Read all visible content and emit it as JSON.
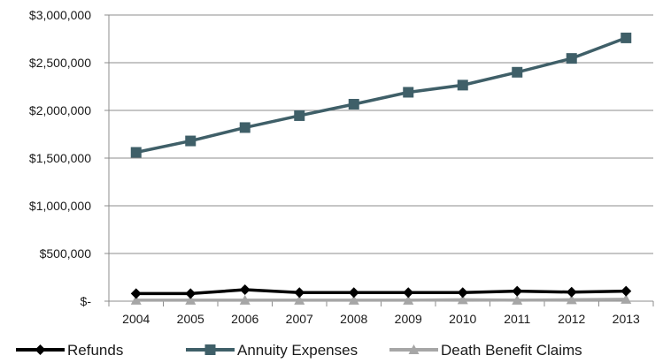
{
  "chart_data": {
    "type": "line",
    "title": "",
    "xlabel": "",
    "ylabel": "",
    "categories": [
      "2004",
      "2005",
      "2006",
      "2007",
      "2008",
      "2009",
      "2010",
      "2011",
      "2012",
      "2013"
    ],
    "y_ticks": [
      {
        "value": 0,
        "label": "$-"
      },
      {
        "value": 500000,
        "label": "$500,000"
      },
      {
        "value": 1000000,
        "label": "$1,000,000"
      },
      {
        "value": 1500000,
        "label": "$1,500,000"
      },
      {
        "value": 2000000,
        "label": "$2,000,000"
      },
      {
        "value": 2500000,
        "label": "$2,500,000"
      },
      {
        "value": 3000000,
        "label": "$3,000,000"
      }
    ],
    "ylim": [
      0,
      3000000
    ],
    "grid": "horizontal",
    "legend_position": "bottom",
    "series": [
      {
        "name": "Refunds",
        "marker": "diamond",
        "color": "#000000",
        "values": [
          80000,
          80000,
          120000,
          90000,
          90000,
          90000,
          90000,
          105000,
          95000,
          105000
        ]
      },
      {
        "name": "Annuity Expenses",
        "marker": "square",
        "color": "#3f5f68",
        "values": [
          1560000,
          1680000,
          1820000,
          1945000,
          2065000,
          2190000,
          2265000,
          2400000,
          2545000,
          2760000
        ]
      },
      {
        "name": "Death Benefit Claims",
        "marker": "triangle",
        "color": "#a6a6a6",
        "values": [
          10000,
          10000,
          10000,
          10000,
          10000,
          10000,
          15000,
          10000,
          15000,
          20000
        ]
      }
    ]
  }
}
